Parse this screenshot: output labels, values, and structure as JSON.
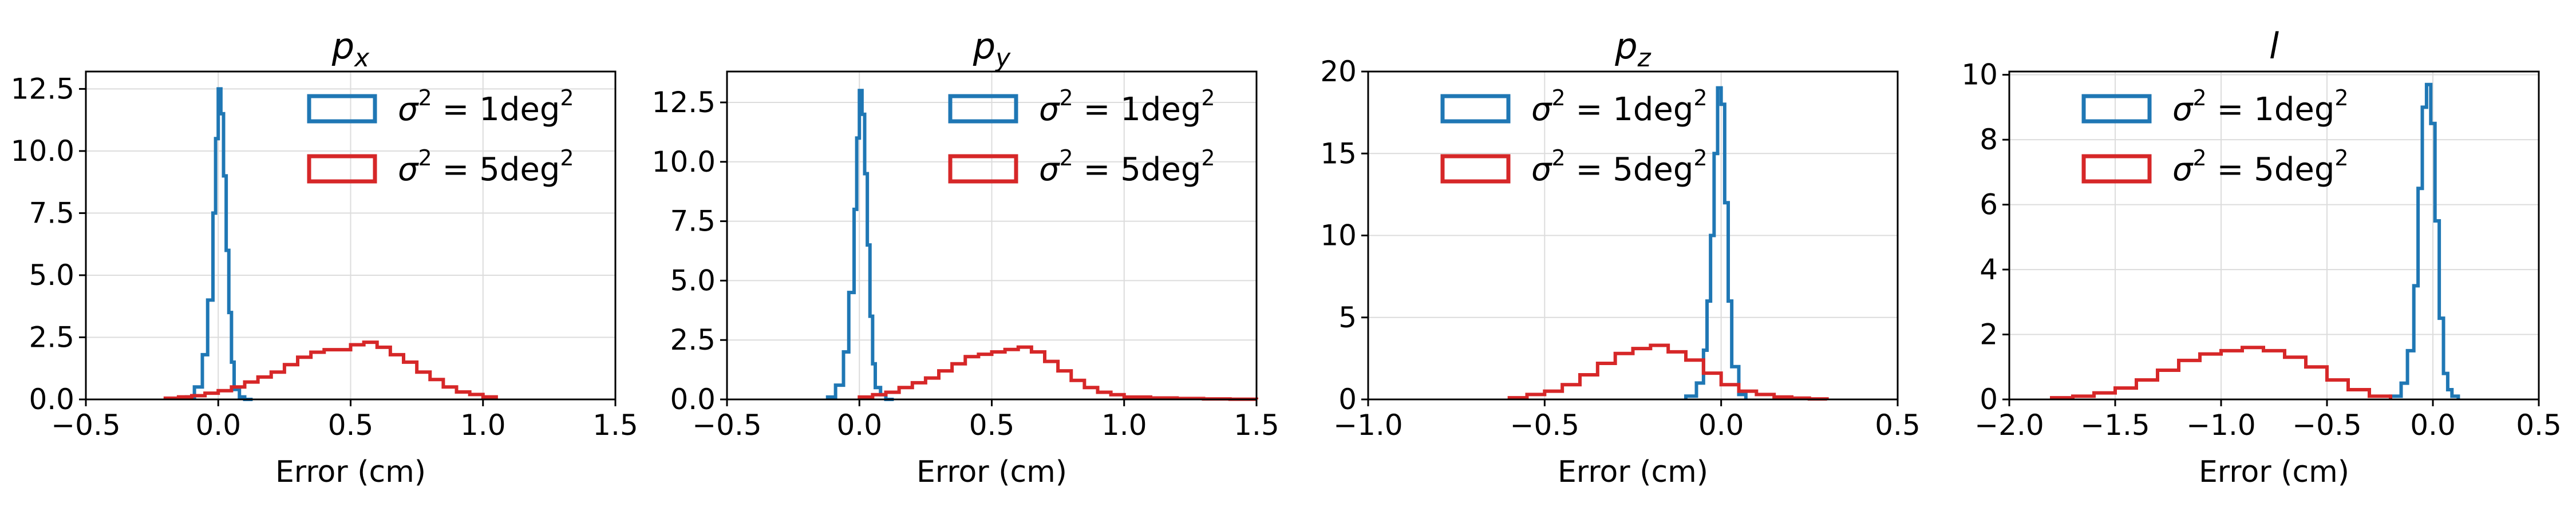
{
  "chart_data": [
    {
      "type": "histogram",
      "title": "p_x",
      "title_main": "p",
      "title_sub": "x",
      "xlabel": "Error (cm)",
      "ylabel": "",
      "xlim": [
        -0.5,
        1.5
      ],
      "ylim": [
        0,
        13.2
      ],
      "xticks": [
        -0.5,
        0.0,
        0.5,
        1.0,
        1.5
      ],
      "xtick_labels": [
        "−0.5",
        "0.0",
        "0.5",
        "1.0",
        "1.5"
      ],
      "yticks": [
        0,
        2.5,
        5.0,
        7.5,
        10.0,
        12.5
      ],
      "ytick_labels": [
        "0.0",
        "2.5",
        "5.0",
        "7.5",
        "10.0",
        "12.5"
      ],
      "grid": true,
      "legend_position": "top-right",
      "series": [
        {
          "name": "σ² = 1deg²",
          "name_prefix": "σ",
          "name_sup": "2",
          "name_mid": " = 1deg",
          "name_sup2": "2",
          "color": "#1f77b4",
          "bin_edges": [
            -0.12,
            -0.09,
            -0.06,
            -0.04,
            -0.02,
            -0.01,
            0.0,
            0.01,
            0.02,
            0.03,
            0.04,
            0.05,
            0.06,
            0.08,
            0.1,
            0.13
          ],
          "values": [
            0.1,
            0.5,
            1.8,
            4.0,
            7.5,
            10.5,
            12.5,
            11.5,
            9.0,
            6.0,
            3.5,
            1.5,
            0.4,
            0.1,
            0.0
          ]
        },
        {
          "name": "σ² = 5deg²",
          "name_prefix": "σ",
          "name_sup": "2",
          "name_mid": " = 5deg",
          "name_sup2": "2",
          "color": "#d62728",
          "bin_edges": [
            -0.2,
            -0.15,
            -0.1,
            -0.05,
            0.0,
            0.05,
            0.1,
            0.15,
            0.2,
            0.25,
            0.3,
            0.35,
            0.4,
            0.45,
            0.5,
            0.55,
            0.6,
            0.65,
            0.7,
            0.75,
            0.8,
            0.85,
            0.9,
            0.95,
            1.0,
            1.05
          ],
          "values": [
            0.05,
            0.1,
            0.15,
            0.25,
            0.35,
            0.5,
            0.7,
            0.9,
            1.1,
            1.4,
            1.7,
            1.9,
            2.0,
            2.0,
            2.2,
            2.3,
            2.1,
            1.8,
            1.5,
            1.1,
            0.8,
            0.5,
            0.3,
            0.2,
            0.1
          ]
        }
      ]
    },
    {
      "type": "histogram",
      "title": "p_y",
      "title_main": "p",
      "title_sub": "y",
      "xlabel": "Error (cm)",
      "ylabel": "",
      "xlim": [
        -0.5,
        1.5
      ],
      "ylim": [
        0,
        13.8
      ],
      "xticks": [
        -0.5,
        0.0,
        0.5,
        1.0,
        1.5
      ],
      "xtick_labels": [
        "−0.5",
        "0.0",
        "0.5",
        "1.0",
        "1.5"
      ],
      "yticks": [
        0,
        2.5,
        5.0,
        7.5,
        10.0,
        12.5
      ],
      "ytick_labels": [
        "0.0",
        "2.5",
        "5.0",
        "7.5",
        "10.0",
        "12.5"
      ],
      "grid": true,
      "legend_position": "top-right",
      "series": [
        {
          "name": "σ² = 1deg²",
          "name_prefix": "σ",
          "name_sup": "2",
          "name_mid": " = 1deg",
          "name_sup2": "2",
          "color": "#1f77b4",
          "bin_edges": [
            -0.12,
            -0.09,
            -0.06,
            -0.04,
            -0.02,
            -0.01,
            0.0,
            0.01,
            0.02,
            0.03,
            0.04,
            0.05,
            0.06,
            0.08,
            0.1,
            0.13
          ],
          "values": [
            0.1,
            0.6,
            2.0,
            4.5,
            8.0,
            11.0,
            13.0,
            12.0,
            9.5,
            6.5,
            3.5,
            1.5,
            0.5,
            0.2,
            0.0
          ]
        },
        {
          "name": "σ² = 5deg²",
          "name_prefix": "σ",
          "name_sup": "2",
          "name_mid": " = 5deg",
          "name_sup2": "2",
          "color": "#d62728",
          "bin_edges": [
            0.0,
            0.05,
            0.1,
            0.15,
            0.2,
            0.25,
            0.3,
            0.35,
            0.4,
            0.45,
            0.5,
            0.55,
            0.6,
            0.65,
            0.7,
            0.75,
            0.8,
            0.85,
            0.9,
            0.95,
            1.0,
            1.1,
            1.2,
            1.3,
            1.4,
            1.5
          ],
          "values": [
            0.1,
            0.2,
            0.3,
            0.5,
            0.7,
            0.9,
            1.2,
            1.5,
            1.8,
            1.9,
            2.0,
            2.1,
            2.2,
            2.0,
            1.6,
            1.2,
            0.8,
            0.5,
            0.3,
            0.2,
            0.1,
            0.06,
            0.04,
            0.02,
            0.01
          ]
        }
      ]
    },
    {
      "type": "histogram",
      "title": "p_z",
      "title_main": "p",
      "title_sub": "z",
      "xlabel": "Error (cm)",
      "ylabel": "",
      "xlim": [
        -1.0,
        0.5
      ],
      "ylim": [
        0,
        20
      ],
      "xticks": [
        -1.0,
        -0.5,
        0.0,
        0.5
      ],
      "xtick_labels": [
        "−1.0",
        "−0.5",
        "0.0",
        "0.5"
      ],
      "yticks": [
        0,
        5,
        10,
        15,
        20
      ],
      "ytick_labels": [
        "0",
        "5",
        "10",
        "15",
        "20"
      ],
      "grid": true,
      "legend_position": "top-left",
      "series": [
        {
          "name": "σ² = 1deg²",
          "name_prefix": "σ",
          "name_sup": "2",
          "name_mid": " = 1deg",
          "name_sup2": "2",
          "color": "#1f77b4",
          "bin_edges": [
            -0.1,
            -0.07,
            -0.05,
            -0.04,
            -0.03,
            -0.02,
            -0.01,
            0.0,
            0.01,
            0.02,
            0.03,
            0.05,
            0.07
          ],
          "values": [
            0.2,
            1.0,
            3.0,
            6.0,
            10.0,
            15.0,
            19.0,
            18.0,
            12.0,
            6.0,
            2.0,
            0.3
          ]
        },
        {
          "name": "σ² = 5deg²",
          "name_prefix": "σ",
          "name_sup": "2",
          "name_mid": " = 5deg",
          "name_sup2": "2",
          "color": "#d62728",
          "bin_edges": [
            -0.6,
            -0.55,
            -0.5,
            -0.45,
            -0.4,
            -0.35,
            -0.3,
            -0.25,
            -0.2,
            -0.15,
            -0.1,
            -0.05,
            0.0,
            0.05,
            0.1,
            0.15,
            0.2,
            0.25,
            0.3
          ],
          "values": [
            0.1,
            0.3,
            0.5,
            0.9,
            1.5,
            2.2,
            2.8,
            3.1,
            3.3,
            2.9,
            2.4,
            1.6,
            0.9,
            0.5,
            0.3,
            0.15,
            0.08,
            0.03
          ]
        }
      ]
    },
    {
      "type": "histogram",
      "title": "l",
      "title_main": "l",
      "title_sub": "",
      "xlabel": "Error (cm)",
      "ylabel": "",
      "xlim": [
        -2.0,
        0.5
      ],
      "ylim": [
        0,
        10.1
      ],
      "xticks": [
        -2.0,
        -1.5,
        -1.0,
        -0.5,
        0.0,
        0.5
      ],
      "xtick_labels": [
        "−2.0",
        "−1.5",
        "−1.0",
        "−0.5",
        "0.0",
        "0.5"
      ],
      "yticks": [
        0,
        2,
        4,
        6,
        8,
        10
      ],
      "ytick_labels": [
        "0",
        "2",
        "4",
        "6",
        "8",
        "10"
      ],
      "grid": true,
      "legend_position": "top-left",
      "series": [
        {
          "name": "σ² = 1deg²",
          "name_prefix": "σ",
          "name_sup": "2",
          "name_mid": " = 1deg",
          "name_sup2": "2",
          "color": "#1f77b4",
          "bin_edges": [
            -0.2,
            -0.15,
            -0.12,
            -0.09,
            -0.07,
            -0.05,
            -0.03,
            -0.01,
            0.01,
            0.03,
            0.05,
            0.07,
            0.09,
            0.12
          ],
          "values": [
            0.1,
            0.5,
            1.5,
            3.5,
            6.5,
            9.0,
            9.7,
            8.5,
            5.5,
            2.5,
            0.8,
            0.3,
            0.1
          ]
        },
        {
          "name": "σ² = 5deg²",
          "name_prefix": "σ",
          "name_sup": "2",
          "name_mid": " = 5deg",
          "name_sup2": "2",
          "color": "#d62728",
          "bin_edges": [
            -1.8,
            -1.7,
            -1.6,
            -1.5,
            -1.4,
            -1.3,
            -1.2,
            -1.1,
            -1.0,
            -0.9,
            -0.8,
            -0.7,
            -0.6,
            -0.5,
            -0.4,
            -0.3,
            -0.2
          ],
          "values": [
            0.05,
            0.1,
            0.2,
            0.35,
            0.6,
            0.9,
            1.2,
            1.4,
            1.5,
            1.6,
            1.5,
            1.3,
            1.0,
            0.6,
            0.3,
            0.1
          ]
        }
      ]
    }
  ]
}
